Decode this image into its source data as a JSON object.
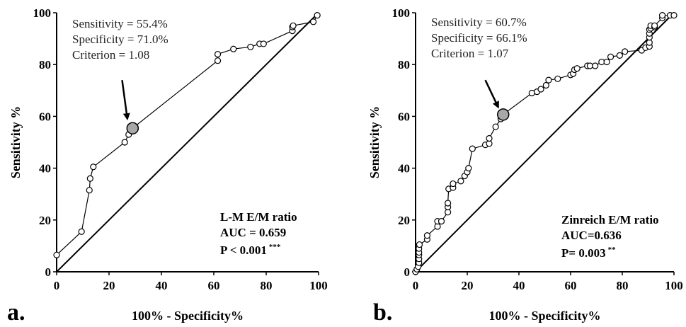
{
  "chart_data": [
    {
      "type": "scatter",
      "panel_label": "a.",
      "xlabel": "100% - Specificity%",
      "ylabel": "Sensitivity %",
      "xlim": [
        0,
        100
      ],
      "ylim": [
        0,
        100
      ],
      "xticks": [
        0,
        20,
        40,
        60,
        80,
        100
      ],
      "yticks": [
        0,
        20,
        40,
        60,
        80,
        100
      ],
      "grid": false,
      "annotation_lines": [
        "Sensitivity = 55.4%",
        "Specificity = 71.0%",
        "Criterion = 1.08"
      ],
      "stats_title": "L-M E/M ratio",
      "auc_text": "AUC = 0.659",
      "p_text": "P < 0.001",
      "p_stars": "***",
      "highlight": {
        "x": 29.0,
        "y": 55.4
      },
      "arrow_from": {
        "x": 25,
        "y": 74
      },
      "arrow_to": {
        "x": 27,
        "y": 59
      },
      "series": [
        {
          "name": "ROC curve",
          "points": [
            [
              0,
              6.5
            ],
            [
              9.5,
              15.5
            ],
            [
              12.5,
              31.5
            ],
            [
              12.8,
              36
            ],
            [
              14,
              40.5
            ],
            [
              26,
              50
            ],
            [
              27.5,
              53
            ],
            [
              29,
              55.4
            ],
            [
              61.5,
              81.5
            ],
            [
              61.5,
              84
            ],
            [
              67.5,
              86
            ],
            [
              74,
              86.8
            ],
            [
              77.5,
              88
            ],
            [
              79,
              88
            ],
            [
              90,
              93
            ],
            [
              90,
              94.5
            ],
            [
              90.3,
              95
            ],
            [
              98,
              96.5
            ],
            [
              99.5,
              99
            ]
          ]
        },
        {
          "name": "Reference line",
          "points": [
            [
              0,
              0
            ],
            [
              100,
              100
            ]
          ]
        }
      ]
    },
    {
      "type": "scatter",
      "panel_label": "b.",
      "xlabel": "100% - Specificity%",
      "ylabel": "Sensitivity %",
      "xlim": [
        0,
        100
      ],
      "ylim": [
        0,
        100
      ],
      "xticks": [
        0,
        20,
        40,
        60,
        80,
        100
      ],
      "yticks": [
        0,
        20,
        40,
        60,
        80,
        100
      ],
      "grid": false,
      "annotation_lines": [
        "Sensitivity = 60.7%",
        "Specificity = 66.1%",
        "Criterion = 1.07"
      ],
      "stats_title": "Zinreich E/M ratio",
      "auc_text": "AUC=0.636",
      "p_text": "P= 0.003",
      "p_stars": "**",
      "highlight": {
        "x": 33.9,
        "y": 60.7
      },
      "arrow_from": {
        "x": 27,
        "y": 74
      },
      "arrow_to": {
        "x": 32,
        "y": 63.5
      },
      "series": [
        {
          "name": "ROC curve",
          "points": [
            [
              0,
              0
            ],
            [
              0.5,
              1
            ],
            [
              1,
              2
            ],
            [
              1.3,
              3.5
            ],
            [
              1.3,
              5
            ],
            [
              1.3,
              6.5
            ],
            [
              1.3,
              7.5
            ],
            [
              1.3,
              9
            ],
            [
              1.5,
              10.5
            ],
            [
              4.5,
              12.5
            ],
            [
              4.5,
              14
            ],
            [
              8.5,
              17.5
            ],
            [
              8.5,
              19.5
            ],
            [
              10,
              19.5
            ],
            [
              12.5,
              23
            ],
            [
              12.5,
              25
            ],
            [
              12.5,
              26.5
            ],
            [
              12.8,
              32
            ],
            [
              14.5,
              32.5
            ],
            [
              14.5,
              34
            ],
            [
              17.5,
              35
            ],
            [
              19,
              37
            ],
            [
              20,
              38.5
            ],
            [
              20.5,
              40
            ],
            [
              22,
              47.5
            ],
            [
              27,
              49
            ],
            [
              28.5,
              49.5
            ],
            [
              28.5,
              51.5
            ],
            [
              31,
              56
            ],
            [
              33,
              59
            ],
            [
              33.9,
              60.7
            ],
            [
              45,
              69
            ],
            [
              47,
              69.5
            ],
            [
              48.5,
              70.5
            ],
            [
              50.5,
              72
            ],
            [
              51.5,
              74
            ],
            [
              55,
              74.5
            ],
            [
              60,
              76
            ],
            [
              61,
              76.5
            ],
            [
              61.5,
              78
            ],
            [
              62.5,
              78.5
            ],
            [
              66.5,
              79.5
            ],
            [
              67.5,
              79.5
            ],
            [
              69.5,
              79.5
            ],
            [
              72,
              81
            ],
            [
              74,
              81
            ],
            [
              75.5,
              83
            ],
            [
              79,
              83.5
            ],
            [
              81,
              85
            ],
            [
              87.5,
              85.5
            ],
            [
              89,
              86.5
            ],
            [
              90.5,
              87
            ],
            [
              90.5,
              88.5
            ],
            [
              90.5,
              90.5
            ],
            [
              90.5,
              92
            ],
            [
              90.5,
              93.5
            ],
            [
              91,
              94
            ],
            [
              91,
              95
            ],
            [
              92.5,
              94.5
            ],
            [
              92.5,
              95
            ],
            [
              95.5,
              98
            ],
            [
              95.5,
              99
            ],
            [
              98.5,
              99
            ],
            [
              100,
              99
            ]
          ]
        },
        {
          "name": "Reference line",
          "points": [
            [
              0,
              0
            ],
            [
              100,
              100
            ]
          ]
        }
      ]
    }
  ]
}
